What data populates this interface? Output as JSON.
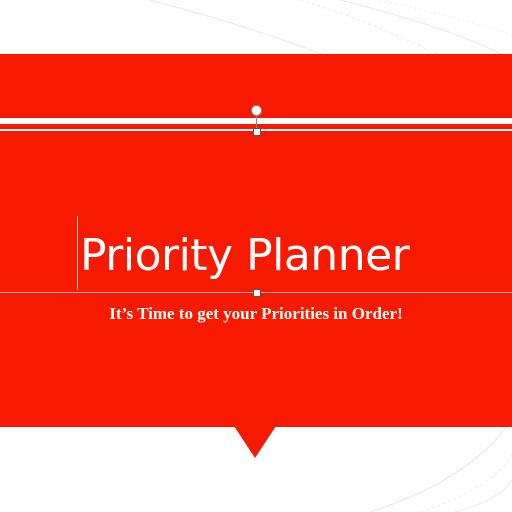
{
  "slide": {
    "title": "Priority Planner",
    "subtitle": "It’s Time to get your Priorities in Order!"
  },
  "colors": {
    "banner": "#f71a00",
    "text": "#ffffff",
    "background": "#ffffff"
  },
  "icons": {
    "rotate_handle": "rotate-handle-icon",
    "resize_handle": "resize-handle-icon"
  }
}
